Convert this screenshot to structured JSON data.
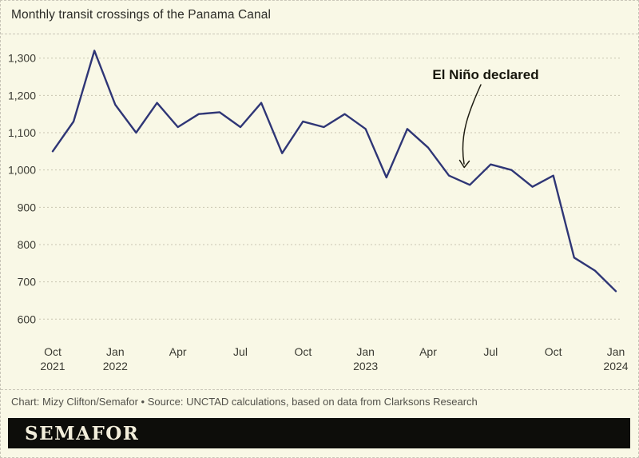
{
  "title": "Monthly transit crossings of the Panama Canal",
  "colors": {
    "background": "#f9f8e6",
    "line": "#2f3676",
    "grid": "#c9c5b1",
    "text": "#3b3b33",
    "caption": "#52514a",
    "bar": "#0d0d0a",
    "logo_text": "#f2eedb",
    "annotation": "#17160c",
    "border": "#c9c6b8",
    "title": "#2b2b26"
  },
  "chart_data": {
    "type": "line",
    "title": "Monthly transit crossings of the Panama Canal",
    "series_name": "Monthly transit crossings",
    "x": [
      "Oct 2021",
      "Nov 2021",
      "Dec 2021",
      "Jan 2022",
      "Feb 2022",
      "Mar 2022",
      "Apr 2022",
      "May 2022",
      "Jun 2022",
      "Jul 2022",
      "Aug 2022",
      "Sep 2022",
      "Oct 2022",
      "Nov 2022",
      "Dec 2022",
      "Jan 2023",
      "Feb 2023",
      "Mar 2023",
      "Apr 2023",
      "May 2023",
      "Jun 2023",
      "Jul 2023",
      "Aug 2023",
      "Sep 2023",
      "Oct 2023",
      "Nov 2023",
      "Dec 2023",
      "Jan 2024"
    ],
    "values": [
      1050,
      1130,
      1320,
      1175,
      1100,
      1180,
      1115,
      1150,
      1155,
      1115,
      1180,
      1045,
      1130,
      1115,
      1150,
      1110,
      980,
      1110,
      1060,
      985,
      960,
      1015,
      1000,
      955,
      985,
      765,
      730,
      675
    ],
    "ylim": [
      600,
      1300
    ],
    "yticks": [
      1300,
      1200,
      1100,
      1000,
      900,
      800,
      700,
      600
    ],
    "ytick_labels": [
      "1,300",
      "1,200",
      "1,100",
      "1,000",
      "900",
      "800",
      "700",
      "600"
    ],
    "xticks": [
      {
        "index": 0,
        "line1": "Oct",
        "line2": "2021"
      },
      {
        "index": 3,
        "line1": "Jan",
        "line2": "2022"
      },
      {
        "index": 6,
        "line1": "Apr",
        "line2": ""
      },
      {
        "index": 9,
        "line1": "Jul",
        "line2": ""
      },
      {
        "index": 12,
        "line1": "Oct",
        "line2": ""
      },
      {
        "index": 15,
        "line1": "Jan",
        "line2": "2023"
      },
      {
        "index": 18,
        "line1": "Apr",
        "line2": ""
      },
      {
        "index": 21,
        "line1": "Jul",
        "line2": ""
      },
      {
        "index": 24,
        "line1": "Oct",
        "line2": ""
      },
      {
        "index": 27,
        "line1": "Jan",
        "line2": "2024"
      }
    ],
    "grid": "horizontal dotted",
    "legend": "none",
    "annotation": {
      "label": "El Niño declared",
      "points_to": "Jun 2023",
      "points_to_value": 960
    }
  },
  "footer": {
    "caption": "Chart: Mizy Clifton/Semafor • Source: UNCTAD calculations, based on data from Clarksons Research"
  },
  "logo": {
    "text": "SEMAFOR"
  }
}
